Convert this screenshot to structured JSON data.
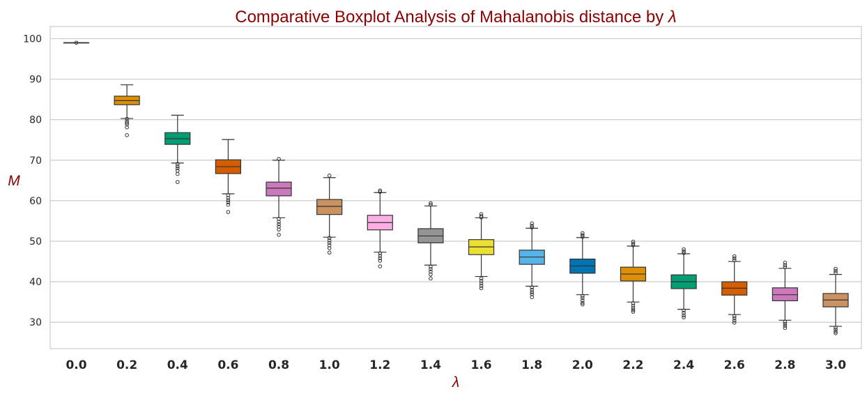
{
  "chart_data": {
    "type": "box",
    "title": "Comparative Boxplot Analysis of Mahalanobis distance by",
    "title_symbol": "λ",
    "xlabel": "λ",
    "ylabel": "M",
    "ylim": [
      23.5,
      103
    ],
    "yticks": [
      30,
      40,
      50,
      60,
      70,
      80,
      90,
      100
    ],
    "grid": "horizontal",
    "categories": [
      "0.0",
      "0.2",
      "0.4",
      "0.6",
      "0.8",
      "1.0",
      "1.2",
      "1.4",
      "1.6",
      "1.8",
      "2.0",
      "2.2",
      "2.4",
      "2.6",
      "2.8",
      "3.0"
    ],
    "colors": [
      "#0173b2",
      "#de8f05",
      "#029e73",
      "#d55e00",
      "#cc78bc",
      "#ca9161",
      "#fbafe4",
      "#949494",
      "#ece133",
      "#56b4e9",
      "#0173b2",
      "#de8f05",
      "#029e73",
      "#d55e00",
      "#cc78bc",
      "#ca9161"
    ],
    "boxes": [
      {
        "whislo": 99.0,
        "q1": 99.0,
        "med": 99.0,
        "q3": 99.0,
        "whishi": 99.0,
        "fliers": [
          99.0
        ]
      },
      {
        "whislo": 80.3,
        "q1": 83.7,
        "med": 84.7,
        "q3": 85.8,
        "whishi": 88.6,
        "fliers": [
          80.2,
          79.6,
          79.2,
          78.8,
          78.1,
          76.2
        ]
      },
      {
        "whislo": 69.3,
        "q1": 73.9,
        "med": 75.3,
        "q3": 76.8,
        "whishi": 81.1,
        "fliers": [
          69.1,
          68.5,
          68.0,
          67.4,
          66.6,
          64.6
        ]
      },
      {
        "whislo": 61.7,
        "q1": 66.7,
        "med": 68.4,
        "q3": 70.1,
        "whishi": 75.1,
        "fliers": [
          61.4,
          60.7,
          60.1,
          59.6,
          59.0,
          57.2
        ]
      },
      {
        "whislo": 55.8,
        "q1": 61.2,
        "med": 63.1,
        "q3": 64.6,
        "whishi": 70.0,
        "fliers": [
          70.3,
          55.5,
          54.8,
          54.2,
          53.6,
          52.9,
          51.6
        ]
      },
      {
        "whislo": 51.0,
        "q1": 56.6,
        "med": 58.6,
        "q3": 60.3,
        "whishi": 65.7,
        "fliers": [
          66.2,
          50.8,
          50.2,
          49.6,
          49.0,
          48.3,
          47.2
        ]
      },
      {
        "whislo": 47.3,
        "q1": 52.8,
        "med": 54.6,
        "q3": 56.4,
        "whishi": 62.0,
        "fliers": [
          62.5,
          62.2,
          47.0,
          46.4,
          45.8,
          45.2,
          43.8
        ]
      },
      {
        "whislo": 44.1,
        "q1": 49.6,
        "med": 51.3,
        "q3": 53.1,
        "whishi": 58.7,
        "fliers": [
          59.4,
          59.0,
          43.7,
          43.1,
          42.5,
          41.8,
          40.8
        ]
      },
      {
        "whislo": 41.3,
        "q1": 46.7,
        "med": 48.6,
        "q3": 50.4,
        "whishi": 55.8,
        "fliers": [
          56.7,
          56.2,
          55.9,
          40.8,
          40.2,
          39.6,
          39.0,
          38.4
        ]
      },
      {
        "whislo": 38.9,
        "q1": 44.3,
        "med": 46.1,
        "q3": 47.8,
        "whishi": 53.2,
        "fliers": [
          54.4,
          53.8,
          53.4,
          38.6,
          38.0,
          37.4,
          36.9,
          36.2
        ]
      },
      {
        "whislo": 36.8,
        "q1": 42.1,
        "med": 43.9,
        "q3": 45.6,
        "whishi": 50.9,
        "fliers": [
          52.0,
          51.5,
          51.1,
          36.5,
          36.0,
          35.4,
          34.8,
          34.4
        ]
      },
      {
        "whislo": 35.0,
        "q1": 40.2,
        "med": 41.9,
        "q3": 43.6,
        "whishi": 48.8,
        "fliers": [
          49.9,
          49.4,
          49.0,
          34.7,
          34.1,
          33.5,
          33.0,
          32.6
        ]
      },
      {
        "whislo": 33.2,
        "q1": 38.3,
        "med": 40.0,
        "q3": 41.7,
        "whishi": 46.9,
        "fliers": [
          48.0,
          47.5,
          47.1,
          32.9,
          32.3,
          31.7,
          31.2
        ]
      },
      {
        "whislo": 31.9,
        "q1": 36.7,
        "med": 38.4,
        "q3": 40.0,
        "whishi": 45.0,
        "fliers": [
          46.3,
          45.8,
          45.3,
          31.5,
          31.0,
          30.4,
          29.9
        ]
      },
      {
        "whislo": 30.5,
        "q1": 35.3,
        "med": 36.8,
        "q3": 38.5,
        "whishi": 43.3,
        "fliers": [
          44.7,
          44.1,
          43.6,
          30.1,
          29.6,
          29.1,
          28.6
        ]
      },
      {
        "whislo": 29.0,
        "q1": 33.8,
        "med": 35.5,
        "q3": 37.1,
        "whishi": 41.8,
        "fliers": [
          43.2,
          42.7,
          42.2,
          28.7,
          28.2,
          27.7,
          27.3
        ]
      }
    ]
  }
}
